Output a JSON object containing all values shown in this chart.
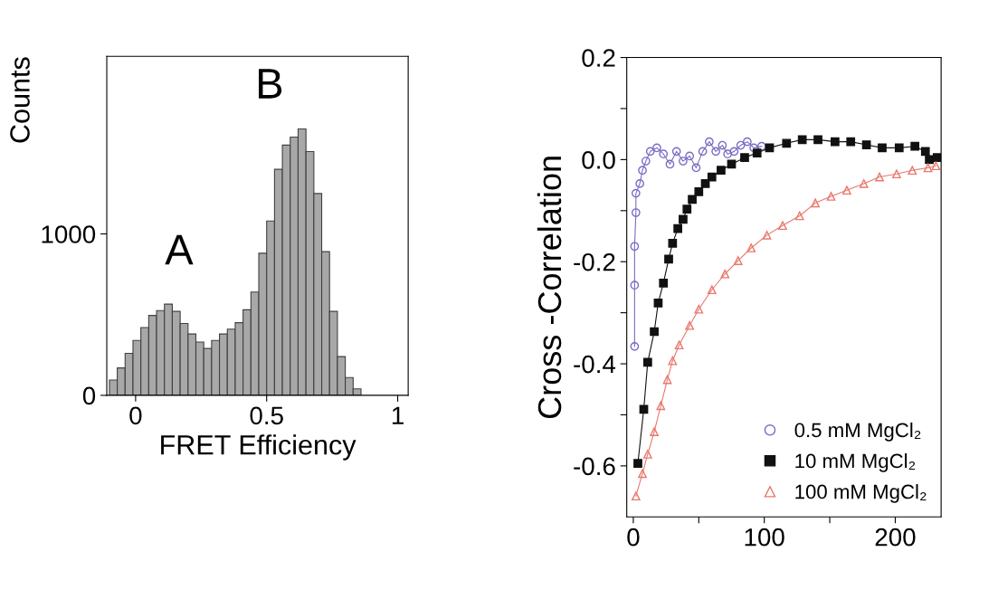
{
  "chart_data": [
    {
      "type": "histogram",
      "xlabel": "FRET Efficiency",
      "ylabel": "Counts",
      "bins": [
        -0.1,
        -0.07,
        -0.04,
        -0.01,
        0.02,
        0.05,
        0.08,
        0.11,
        0.14,
        0.17,
        0.2,
        0.23,
        0.26,
        0.29,
        0.32,
        0.35,
        0.38,
        0.41,
        0.44,
        0.47,
        0.5,
        0.53,
        0.56,
        0.59,
        0.62,
        0.65,
        0.68,
        0.71,
        0.74,
        0.77,
        0.8,
        0.83,
        0.86
      ],
      "values": [
        95,
        170,
        260,
        340,
        420,
        495,
        525,
        565,
        520,
        445,
        380,
        330,
        290,
        340,
        380,
        410,
        450,
        530,
        640,
        880,
        1080,
        1400,
        1550,
        1600,
        1650,
        1510,
        1250,
        890,
        520,
        240,
        110,
        40
      ],
      "color": "#a8a8a8",
      "xlim": [
        -0.11,
        1.04
      ],
      "xticks": [
        0,
        0.5,
        1
      ],
      "ylim": [
        0,
        2100
      ],
      "yticks": [
        0,
        1000
      ],
      "annotations": [
        "A",
        "B"
      ],
      "grid": false
    },
    {
      "type": "line",
      "ylabel": "Cross -Correlation",
      "xlim": [
        -5,
        235
      ],
      "xticks": [
        0,
        {
          "value": 50,
          "label": null
        },
        100,
        {
          "value": 150,
          "label": null
        },
        200
      ],
      "ylim": [
        -0.7,
        0.2
      ],
      "yticks": [
        {
          "value": 0.2,
          "label": "0.2"
        },
        {
          "value": 0.1,
          "label": null
        },
        {
          "value": 0,
          "label": "0.0"
        },
        {
          "value": -0.1,
          "label": null
        },
        {
          "value": -0.2,
          "label": "-0.2"
        },
        {
          "value": -0.3,
          "label": null
        },
        {
          "value": -0.4,
          "label": "-0.4"
        },
        {
          "value": -0.5,
          "label": null
        },
        {
          "value": -0.6,
          "label": "-0.6"
        }
      ],
      "grid": false,
      "legend": "bottom right",
      "line_style": "solid",
      "series": [
        {
          "name": "0.5 mM MgCl₂",
          "color": "#7a6cc4",
          "marker": "circle",
          "x": [
            1,
            1,
            1,
            2,
            2,
            5,
            7,
            9.6,
            13,
            18,
            23,
            28,
            33,
            38,
            43,
            48,
            53,
            58,
            63,
            68,
            72,
            77,
            82,
            87,
            92,
            98
          ],
          "values": [
            -0.366,
            -0.246,
            -0.17,
            -0.104,
            -0.066,
            -0.047,
            -0.021,
            -0.003,
            0.016,
            0.023,
            0.011,
            -0.009,
            0.016,
            -0.003,
            0.007,
            -0.016,
            0.016,
            0.035,
            0.016,
            0.028,
            0.011,
            0.016,
            0.028,
            0.035,
            0.023,
            0.026
          ]
        },
        {
          "name": "10 mM MgCl₂",
          "color": "#111111",
          "marker": "square",
          "x": [
            3.5,
            8,
            11,
            16,
            19,
            23,
            27,
            30,
            34,
            38,
            41,
            45,
            50,
            55,
            60,
            67,
            75,
            85,
            94.5,
            104,
            117,
            129,
            141,
            154,
            166,
            178,
            190,
            203,
            215,
            223,
            226,
            232
          ],
          "values": [
            -0.595,
            -0.489,
            -0.397,
            -0.337,
            -0.281,
            -0.242,
            -0.195,
            -0.164,
            -0.135,
            -0.117,
            -0.097,
            -0.078,
            -0.063,
            -0.047,
            -0.034,
            -0.021,
            -0.009,
            0.004,
            0.013,
            0.023,
            0.032,
            0.039,
            0.039,
            0.035,
            0.035,
            0.029,
            0.023,
            0.023,
            0.026,
            0.016,
            0.0,
            0.004
          ]
        },
        {
          "name": "100 mM MgCl₂",
          "color": "#e8786e",
          "marker": "triangle",
          "x": [
            2,
            7,
            11,
            16,
            21,
            26,
            30,
            35,
            43,
            50,
            60,
            70,
            80,
            90,
            102,
            114,
            127,
            139,
            151,
            163,
            176,
            188,
            201,
            213,
            225,
            231
          ],
          "values": [
            -0.659,
            -0.615,
            -0.577,
            -0.533,
            -0.482,
            -0.431,
            -0.394,
            -0.363,
            -0.325,
            -0.293,
            -0.255,
            -0.224,
            -0.198,
            -0.173,
            -0.148,
            -0.129,
            -0.11,
            -0.085,
            -0.072,
            -0.06,
            -0.047,
            -0.034,
            -0.028,
            -0.021,
            -0.016,
            -0.012
          ]
        }
      ]
    }
  ]
}
